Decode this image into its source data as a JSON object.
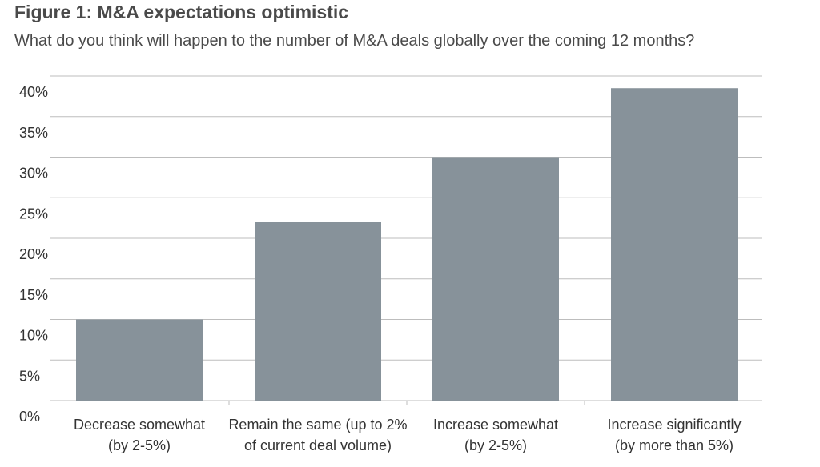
{
  "chart_data": {
    "type": "bar",
    "title": "Figure 1: M&A expectations optimistic",
    "subtitle": "What do you think will happen to the number of M&A deals globally over the coming 12 months?",
    "categories": [
      [
        "Decrease somewhat",
        "(by 2-5%)"
      ],
      [
        "Remain the same (up to 2%",
        "of current deal volume)"
      ],
      [
        "Increase somewhat",
        "(by 2-5%)"
      ],
      [
        "Increase significantly",
        "(by more than 5%)"
      ]
    ],
    "values": [
      10,
      22,
      30,
      38.5
    ],
    "ylim": [
      0,
      40
    ],
    "yticks": [
      "0%",
      "5%",
      "10%",
      "15%",
      "20%",
      "25%",
      "30%",
      "35%",
      "40%"
    ],
    "bar_color": "#87929a",
    "grid_color": "#bdbdbd",
    "grid": true
  }
}
